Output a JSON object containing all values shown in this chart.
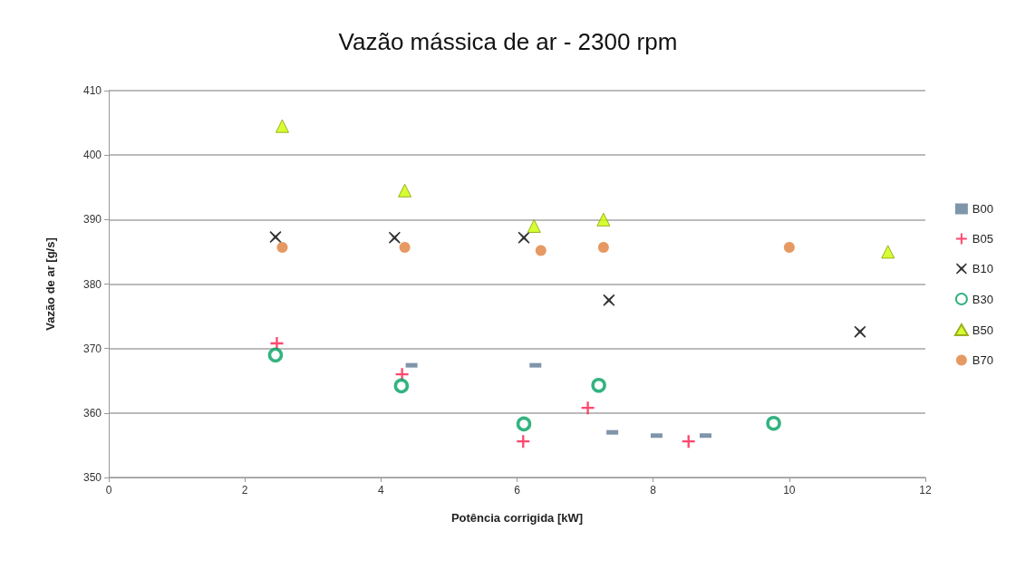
{
  "chart_data": {
    "type": "scatter",
    "title": "Vazão mássica de ar - 2300 rpm",
    "xlabel": "Potência corrigida [kW]",
    "ylabel": "Vazão de ar [g/s]",
    "xlim": [
      0,
      12
    ],
    "xticks": [
      0,
      2,
      4,
      6,
      8,
      10,
      12
    ],
    "ylim": [
      350,
      410
    ],
    "yticks": [
      350,
      360,
      370,
      380,
      390,
      400,
      410
    ],
    "grid": "y",
    "legend": "right",
    "series": [
      {
        "name": "B00",
        "color": "#5f7a95",
        "x": [
          4.45,
          6.27,
          7.4,
          8.05,
          8.77
        ],
        "values": [
          367.4,
          367.4,
          357,
          356.5,
          356.5
        ]
      },
      {
        "name": "B05",
        "color": "#ff1a4a",
        "x": [
          2.47,
          4.31,
          6.09,
          7.04,
          8.52
        ],
        "values": [
          370.8,
          366,
          355.6,
          360.8,
          355.6
        ]
      },
      {
        "name": "B10",
        "color": "#000000",
        "x": [
          2.45,
          4.2,
          6.1,
          7.35,
          11.04
        ],
        "values": [
          387.3,
          387.2,
          387.2,
          377.5,
          372.6
        ]
      },
      {
        "name": "B30",
        "color": "#00a060",
        "marker": "circle",
        "x": [
          2.45,
          4.3,
          6.1,
          7.2,
          9.77
        ],
        "values": [
          369,
          364.2,
          358.3,
          364.3,
          358.4
        ]
      },
      {
        "name": "B50",
        "color": "#ccff00",
        "marker": "triangle",
        "x": [
          2.55,
          4.35,
          6.25,
          7.27,
          11.45
        ],
        "values": [
          404.5,
          394.5,
          389,
          390,
          385
        ]
      },
      {
        "name": "B70",
        "color": "#e0803c",
        "marker": "circle",
        "x": [
          2.55,
          4.35,
          6.35,
          7.27,
          10
        ],
        "values": [
          385.7,
          385.7,
          385.2,
          385.7,
          385.7
        ]
      }
    ]
  }
}
